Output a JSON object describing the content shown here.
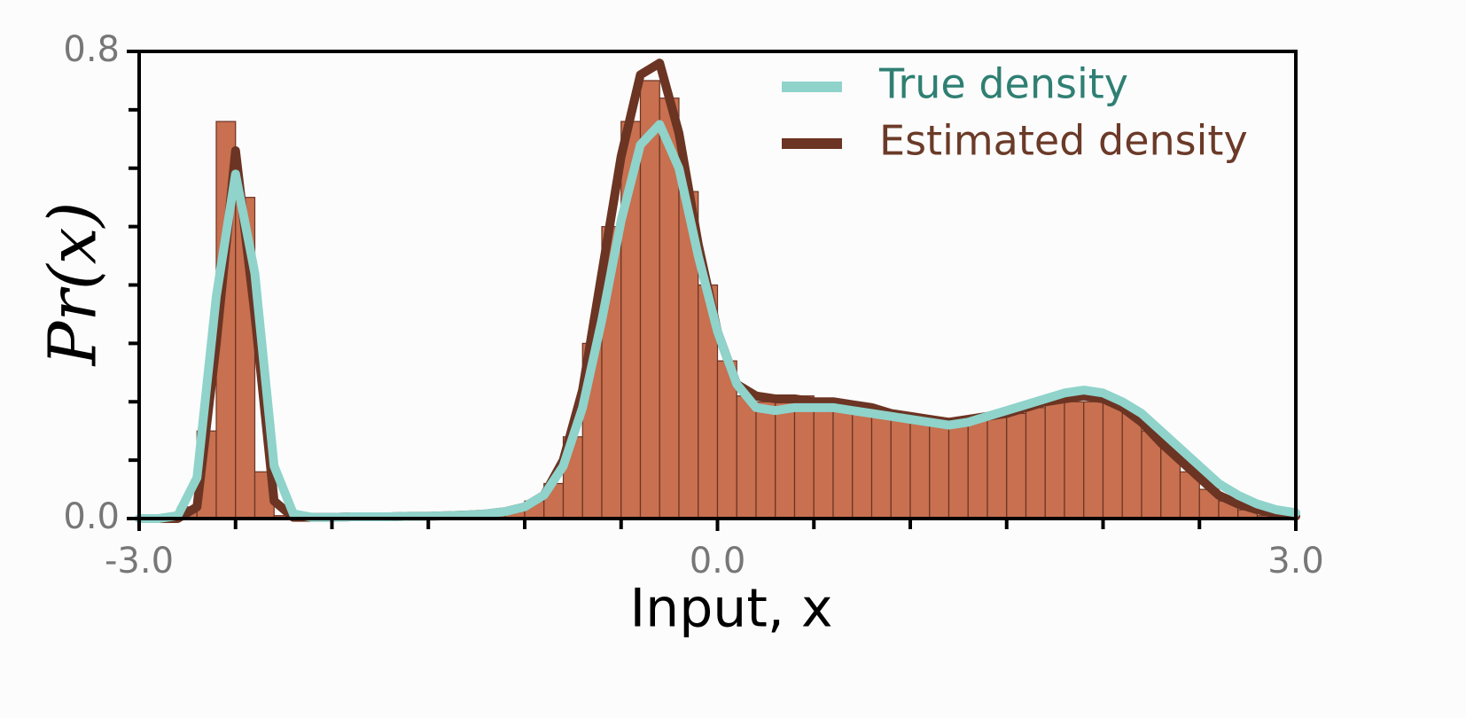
{
  "chart_data": {
    "type": "histogram",
    "xlabel": "Input, x",
    "ylabel": "Pr(x)",
    "bins": [
      -3.0,
      -2.9,
      -2.8,
      -2.7,
      -2.6,
      -2.5,
      -2.4,
      -2.3,
      -2.2,
      -2.1,
      -2.0,
      -1.9,
      -1.8,
      -1.7,
      -1.6,
      -1.5,
      -1.4,
      -1.3,
      -1.2,
      -1.1,
      -1.0,
      -0.9,
      -0.8,
      -0.7,
      -0.6,
      -0.5,
      -0.4,
      -0.3,
      -0.2,
      -0.1,
      0.0,
      0.1,
      0.2,
      0.3,
      0.4,
      0.5,
      0.6,
      0.7,
      0.8,
      0.9,
      1.0,
      1.1,
      1.2,
      1.3,
      1.4,
      1.5,
      1.6,
      1.7,
      1.8,
      1.9,
      2.0,
      2.1,
      2.2,
      2.3,
      2.4,
      2.5,
      2.6,
      2.7,
      2.8,
      2.9,
      3.0
    ],
    "values": [
      0,
      0,
      0.02,
      0.15,
      0.68,
      0.55,
      0.08,
      0.005,
      0,
      0,
      0,
      0.002,
      0.003,
      0.003,
      0.004,
      0.004,
      0.005,
      0.007,
      0.01,
      0.015,
      0.03,
      0.06,
      0.14,
      0.3,
      0.5,
      0.68,
      0.75,
      0.72,
      0.56,
      0.4,
      0.27,
      0.21,
      0.2,
      0.2,
      0.21,
      0.2,
      0.2,
      0.19,
      0.185,
      0.18,
      0.17,
      0.165,
      0.165,
      0.17,
      0.175,
      0.18,
      0.19,
      0.2,
      0.2,
      0.2,
      0.2,
      0.18,
      0.15,
      0.12,
      0.08,
      0.05,
      0.03,
      0.015,
      0.005,
      0.002
    ],
    "color": "#c8704f",
    "edgecolor": "#6b3423",
    "x": [
      -3.0,
      -2.9,
      -2.8,
      -2.7,
      -2.6,
      -2.5,
      -2.4,
      -2.3,
      -2.2,
      -2.1,
      -2.0,
      -1.9,
      -1.8,
      -1.7,
      -1.6,
      -1.5,
      -1.4,
      -1.3,
      -1.2,
      -1.1,
      -1.0,
      -0.9,
      -0.8,
      -0.7,
      -0.6,
      -0.5,
      -0.4,
      -0.3,
      -0.2,
      -0.1,
      0.0,
      0.1,
      0.2,
      0.3,
      0.4,
      0.5,
      0.6,
      0.7,
      0.8,
      0.9,
      1.0,
      1.1,
      1.2,
      1.3,
      1.4,
      1.5,
      1.6,
      1.7,
      1.8,
      1.9,
      2.0,
      2.1,
      2.2,
      2.3,
      2.4,
      2.5,
      2.6,
      2.7,
      2.8,
      2.9,
      3.0
    ],
    "series": [
      {
        "name": "Estimated density",
        "color": "#6b3423",
        "text_color": "#6b3a28",
        "values": [
          0,
          0,
          0,
          0.02,
          0.3,
          0.63,
          0.35,
          0.03,
          0.002,
          0.002,
          0.002,
          0.003,
          0.003,
          0.003,
          0.004,
          0.004,
          0.005,
          0.006,
          0.008,
          0.012,
          0.02,
          0.04,
          0.1,
          0.22,
          0.42,
          0.62,
          0.76,
          0.78,
          0.66,
          0.47,
          0.32,
          0.23,
          0.21,
          0.205,
          0.205,
          0.2,
          0.2,
          0.195,
          0.19,
          0.18,
          0.175,
          0.17,
          0.165,
          0.17,
          0.175,
          0.18,
          0.19,
          0.2,
          0.205,
          0.21,
          0.205,
          0.19,
          0.165,
          0.13,
          0.1,
          0.07,
          0.04,
          0.025,
          0.015,
          0.008,
          0.004
        ]
      },
      {
        "name": "True density",
        "color": "#8fd3cb",
        "text_color": "#2f7f73",
        "values": [
          0,
          0,
          0.005,
          0.07,
          0.38,
          0.59,
          0.42,
          0.09,
          0.008,
          0.002,
          0.002,
          0.003,
          0.003,
          0.003,
          0.004,
          0.004,
          0.005,
          0.006,
          0.008,
          0.012,
          0.02,
          0.04,
          0.09,
          0.19,
          0.34,
          0.51,
          0.64,
          0.675,
          0.6,
          0.45,
          0.32,
          0.23,
          0.19,
          0.185,
          0.19,
          0.19,
          0.19,
          0.185,
          0.18,
          0.175,
          0.17,
          0.165,
          0.16,
          0.165,
          0.175,
          0.185,
          0.195,
          0.205,
          0.215,
          0.22,
          0.215,
          0.2,
          0.18,
          0.15,
          0.12,
          0.09,
          0.06,
          0.04,
          0.025,
          0.015,
          0.01
        ]
      }
    ],
    "legend_order": [
      1,
      0
    ],
    "legend": "upper right",
    "xlim": [
      -3.0,
      3.0
    ],
    "ylim": [
      0,
      0.8
    ],
    "xticks": [
      {
        "value": -3.0,
        "label": "-3.0"
      },
      {
        "value": 0.0,
        "label": "0.0"
      },
      {
        "value": 3.0,
        "label": "3.0"
      }
    ],
    "xminorticks": [
      -2.5,
      -2.0,
      -1.5,
      -1.0,
      -0.5,
      0.5,
      1.0,
      1.5,
      2.0,
      2.5
    ],
    "yticks": [
      {
        "value": 0,
        "label": "0.0"
      },
      {
        "value": 0.8,
        "label": "0.8"
      }
    ],
    "yminorticks": [
      0.1,
      0.2,
      0.3,
      0.4,
      0.5,
      0.6,
      0.7
    ]
  }
}
